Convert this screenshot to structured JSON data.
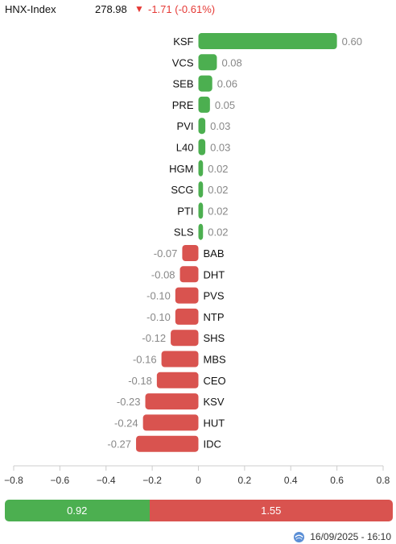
{
  "header": {
    "index_name": "HNX-Index",
    "index_value": "278.98",
    "arrow": "▼",
    "index_change": "-1.71 (-0.61%)"
  },
  "chart_data": {
    "type": "bar",
    "orientation": "horizontal",
    "categories": [
      "KSF",
      "VCS",
      "SEB",
      "PRE",
      "PVI",
      "L40",
      "HGM",
      "SCG",
      "PTI",
      "SLS",
      "BAB",
      "DHT",
      "PVS",
      "NTP",
      "SHS",
      "MBS",
      "CEO",
      "KSV",
      "HUT",
      "IDC"
    ],
    "values": [
      0.6,
      0.08,
      0.06,
      0.05,
      0.03,
      0.03,
      0.02,
      0.02,
      0.02,
      0.02,
      -0.07,
      -0.08,
      -0.1,
      -0.1,
      -0.12,
      -0.16,
      -0.18,
      -0.23,
      -0.24,
      -0.27
    ],
    "value_labels": [
      "0.60",
      "0.08",
      "0.06",
      "0.05",
      "0.03",
      "0.03",
      "0.02",
      "0.02",
      "0.02",
      "0.02",
      "-0.07",
      "-0.08",
      "-0.10",
      "-0.10",
      "-0.12",
      "-0.16",
      "-0.18",
      "-0.23",
      "-0.24",
      "-0.27"
    ],
    "xlim": [
      -0.8,
      0.8
    ],
    "xticks": [
      -0.8,
      -0.6,
      -0.4,
      -0.2,
      0,
      0.2,
      0.4,
      0.6,
      0.8
    ],
    "xtick_labels": [
      "−0.8",
      "−0.6",
      "−0.4",
      "−0.2",
      "0",
      "0.2",
      "0.4",
      "0.6",
      "0.8"
    ],
    "colors": {
      "positive": "#4caf50",
      "negative": "#d9534f",
      "value_label": "#888888"
    },
    "grid": false,
    "legend": "none"
  },
  "summary": {
    "up_value": 0.92,
    "down_value": 1.55,
    "up_label": "0.92",
    "down_label": "1.55",
    "up_color": "#4caf50",
    "down_color": "#d9534f"
  },
  "footer": {
    "icon": "refresh-globe-icon",
    "timestamp": "16/09/2025 - 16:10"
  }
}
